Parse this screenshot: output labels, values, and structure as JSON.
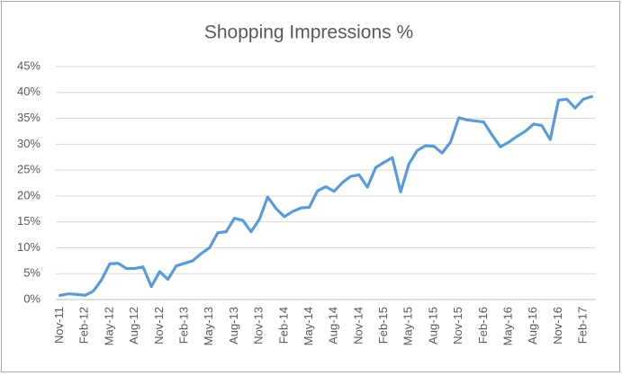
{
  "chart_data": {
    "type": "line",
    "title": "Shopping Impressions %",
    "categories": [
      "Nov-11",
      null,
      null,
      "Feb-12",
      null,
      null,
      "May-12",
      null,
      null,
      "Aug-12",
      null,
      null,
      "Nov-12",
      null,
      null,
      "Feb-13",
      null,
      null,
      "May-13",
      null,
      null,
      "Aug-13",
      null,
      null,
      "Nov-13",
      null,
      null,
      "Feb-14",
      null,
      null,
      "May-14",
      null,
      null,
      "Aug-14",
      null,
      null,
      "Nov-14",
      null,
      null,
      "Feb-15",
      null,
      null,
      "May-15",
      null,
      null,
      "Aug-15",
      null,
      null,
      "Nov-15",
      null,
      null,
      "Feb-16",
      null,
      null,
      "May-16",
      null,
      null,
      "Aug-16",
      null,
      null,
      "Nov-16",
      null,
      null,
      "Feb-17",
      null
    ],
    "values": [
      0.8,
      1.1,
      1.0,
      0.8,
      1.6,
      3.8,
      6.9,
      7.0,
      6.0,
      6.0,
      6.3,
      2.5,
      5.4,
      3.9,
      6.5,
      7.0,
      7.5,
      8.9,
      10.0,
      12.9,
      13.1,
      15.7,
      15.3,
      13.1,
      15.5,
      19.8,
      17.6,
      16.0,
      17.0,
      17.7,
      17.8,
      21.0,
      21.8,
      20.9,
      22.6,
      23.8,
      24.1,
      21.7,
      25.5,
      26.5,
      27.4,
      20.8,
      26.2,
      28.8,
      29.7,
      29.6,
      28.3,
      30.4,
      35.1,
      34.7,
      34.5,
      34.3,
      31.8,
      29.5,
      30.4,
      31.5,
      32.5,
      33.9,
      33.6,
      30.9,
      38.5,
      38.7,
      37.0,
      38.7,
      39.2
    ],
    "color": "#5b9bd5",
    "ylim": [
      0,
      45
    ],
    "yticks": [
      {
        "value": 0,
        "label": "0%"
      },
      {
        "value": 5,
        "label": "5%"
      },
      {
        "value": 10,
        "label": "10%"
      },
      {
        "value": 15,
        "label": "15%"
      },
      {
        "value": 20,
        "label": "20%"
      },
      {
        "value": 25,
        "label": "25%"
      },
      {
        "value": 30,
        "label": "30%"
      },
      {
        "value": 35,
        "label": "35%"
      },
      {
        "value": 40,
        "label": "40%"
      },
      {
        "value": 45,
        "label": "45%"
      }
    ],
    "grid": true
  }
}
